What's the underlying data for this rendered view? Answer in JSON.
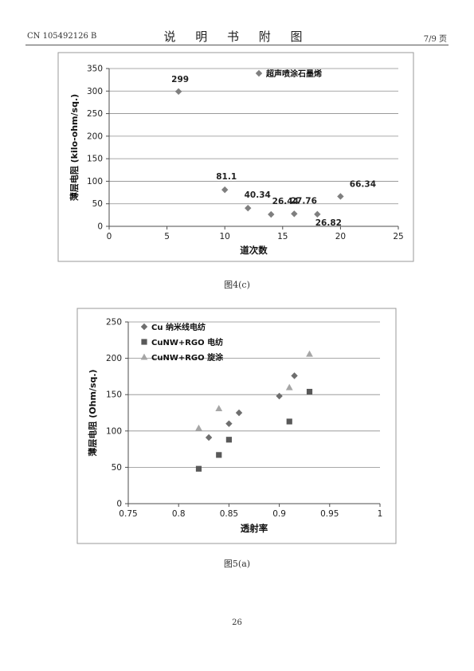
{
  "header": {
    "doc_number": "CN 105492126 B",
    "section_title": "说 明 书 附 图",
    "page_ratio": "7/9 页"
  },
  "chart_data": [
    {
      "type": "scatter",
      "title": "",
      "xlabel": "道次数",
      "ylabel": "薄层电阻 (kilo-ohm/sq.)",
      "xlim": [
        0,
        25
      ],
      "ylim": [
        0,
        350
      ],
      "x_ticks": [
        0,
        5,
        10,
        15,
        20,
        25
      ],
      "y_ticks": [
        0,
        50,
        100,
        150,
        200,
        250,
        300,
        350
      ],
      "grid": "horizontal",
      "legend": "top-right",
      "series": [
        {
          "name": "超声喷涂石墨烯",
          "color": "#7f7f7f",
          "marker": "diamond",
          "x": [
            6,
            10,
            12,
            14,
            16,
            18,
            20
          ],
          "y": [
            299,
            81.1,
            40.34,
            26.44,
            27.76,
            26.82,
            66.34
          ],
          "labels": [
            "299",
            "81.1",
            "40.34",
            "26.44",
            "27.76",
            "26.82",
            "66.34"
          ]
        }
      ]
    },
    {
      "type": "scatter",
      "title": "",
      "xlabel": "透射率",
      "ylabel": "薄层电阻 (Ohm/sq.)",
      "xlim": [
        0.75,
        1
      ],
      "ylim": [
        0,
        250
      ],
      "x_ticks": [
        "0.75",
        "0.8",
        "0.85",
        "0.9",
        "0.95",
        "1"
      ],
      "y_ticks": [
        0,
        50,
        100,
        150,
        200,
        250
      ],
      "grid": "horizontal",
      "legend": "top-left",
      "series": [
        {
          "name": "Cu 纳米线电纺",
          "color": "#6e6e6e",
          "marker": "diamond",
          "x": [
            0.83,
            0.85,
            0.86,
            0.9,
            0.915
          ],
          "y": [
            91,
            110,
            125,
            148,
            176
          ]
        },
        {
          "name": "CuNW+RGO 电纺",
          "color": "#595959",
          "marker": "square",
          "x": [
            0.82,
            0.84,
            0.85,
            0.91,
            0.93
          ],
          "y": [
            48,
            67,
            88,
            113,
            154
          ]
        },
        {
          "name": "CuNW+RGO 旋涂",
          "color": "#a6a6a6",
          "marker": "triangle",
          "x": [
            0.82,
            0.84,
            0.91,
            0.93
          ],
          "y": [
            104,
            131,
            160,
            206
          ]
        }
      ]
    }
  ],
  "captions": {
    "fig1": "图4(c)",
    "fig2": "图5(a)"
  },
  "page_number": "26"
}
